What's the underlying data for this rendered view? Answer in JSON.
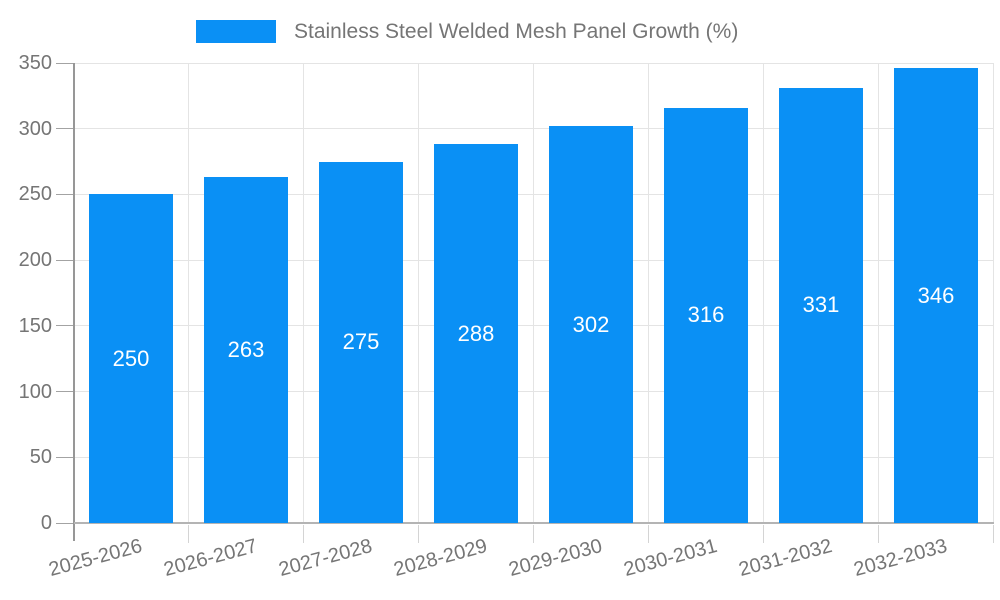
{
  "chart_data": {
    "type": "bar",
    "title": "",
    "legend": "Stainless Steel Welded Mesh Panel Growth (%)",
    "legend_position": "top",
    "categories": [
      "2025-2026",
      "2026-2027",
      "2027-2028",
      "2028-2029",
      "2029-2030",
      "2030-2031",
      "2031-2032",
      "2032-2033"
    ],
    "values": [
      250,
      263,
      275,
      288,
      302,
      316,
      331,
      346
    ],
    "bar_labels": [
      "250",
      "263",
      "275",
      "288",
      "302",
      "316",
      "331",
      "346"
    ],
    "xlabel": "",
    "ylabel": "",
    "ylim": [
      0,
      350
    ],
    "ytick_step": 50,
    "ytick_labels": [
      "0",
      "50",
      "100",
      "150",
      "200",
      "250",
      "300",
      "350"
    ],
    "grid": "on",
    "bar_color": "#0a90f5",
    "bar_value_text_color": "#ffffff",
    "axis_text_color": "#757575",
    "grid_color": "#e4e4e4"
  }
}
